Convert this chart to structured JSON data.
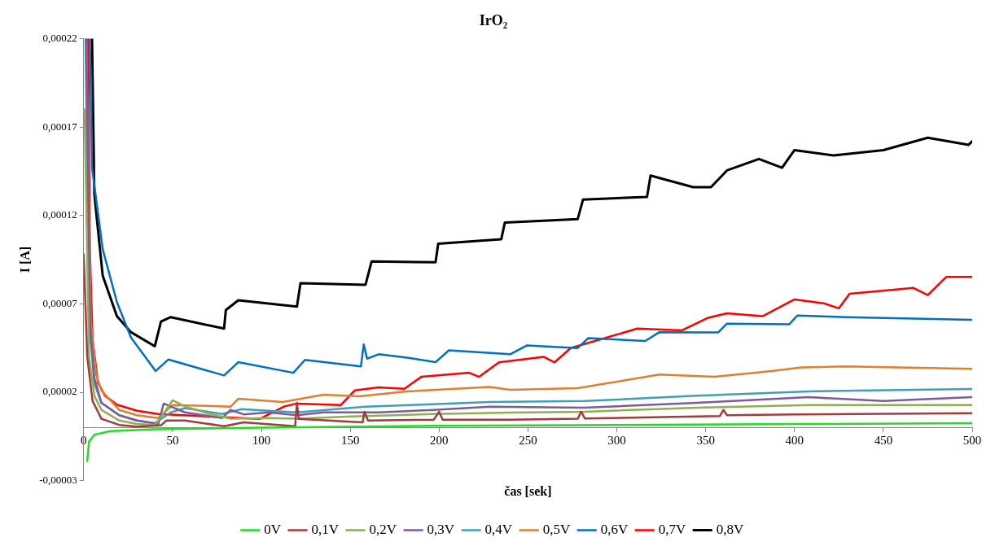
{
  "chart_data": {
    "type": "line",
    "title": "IrO₂",
    "xlabel": "čas [sek]",
    "ylabel": "I [A]",
    "xlim": [
      0,
      500
    ],
    "xticks": [
      0,
      50,
      100,
      150,
      200,
      250,
      300,
      350,
      400,
      450,
      500
    ],
    "ylim": [
      -3e-05,
      0.00022
    ],
    "yticks": [
      {
        "value": -3e-05,
        "label": "-0,00003"
      },
      {
        "value": 2e-05,
        "label": "0,00002"
      },
      {
        "value": 7e-05,
        "label": "0,00007"
      },
      {
        "value": 0.00012,
        "label": "0,00012"
      },
      {
        "value": 0.00017,
        "label": "0,00017"
      },
      {
        "value": 0.00022,
        "label": "0,00022"
      }
    ],
    "grid": false,
    "legend": "bottom",
    "marker": "none",
    "line_style": "solid",
    "series": [
      {
        "name": "0V",
        "color": "#22dd22",
        "x": [
          2,
          3,
          6,
          15,
          40,
          100,
          200,
          300,
          400,
          500
        ],
        "values": [
          -1.9e-05,
          -8e-06,
          -4e-06,
          -2e-06,
          -1e-06,
          0,
          1e-06,
          1.5e-06,
          2e-06,
          2.5e-06
        ]
      },
      {
        "name": "0,1V",
        "color": "#a33b3b",
        "x": [
          0,
          2,
          5,
          10,
          20,
          30,
          43.5,
          46.6,
          57,
          79,
          90,
          119,
          120,
          121,
          157,
          158,
          160,
          197,
          200,
          202,
          240,
          278,
          280,
          282,
          320,
          358,
          360,
          362,
          400,
          450,
          500
        ],
        "values": [
          9.8e-05,
          4e-05,
          1.5e-05,
          5e-06,
          1.5e-06,
          5e-07,
          1.3e-06,
          4e-06,
          4e-06,
          8e-07,
          3e-06,
          8e-07,
          1.4e-05,
          4.9e-06,
          3e-06,
          9e-06,
          4e-06,
          4.5e-06,
          9e-06,
          4.5e-06,
          4.5e-06,
          5e-06,
          9e-06,
          5.2e-06,
          5.8e-06,
          6.5e-06,
          1e-05,
          7e-06,
          7.5e-06,
          7.8e-06,
          8.2e-06
        ]
      },
      {
        "name": "0,2V",
        "color": "#8db050",
        "x": [
          0.5,
          3,
          6,
          10,
          20,
          30,
          40,
          45,
          50,
          57,
          70,
          82.6,
          104,
          120,
          150.6,
          197,
          240,
          282,
          345,
          408,
          500
        ],
        "values": [
          0.00018,
          4e-05,
          1.8e-05,
          1e-05,
          4e-06,
          2e-06,
          1.5e-06,
          8e-06,
          1.54e-05,
          1.2e-05,
          8e-06,
          5e-06,
          5.4e-06,
          5e-06,
          6.3e-06,
          7.7e-06,
          8.5e-06,
          9e-06,
          1.13e-05,
          1.27e-05,
          1.27e-05
        ]
      },
      {
        "name": "0,3V",
        "color": "#7d5aa0",
        "x": [
          1.5,
          3.5,
          6,
          10,
          20,
          30,
          42,
          45,
          57,
          78,
          82.6,
          90,
          104,
          120,
          135,
          166,
          197,
          228.5,
          282,
          345,
          408,
          450,
          500
        ],
        "values": [
          0.00022,
          6e-05,
          2.8e-05,
          1.4e-05,
          7e-06,
          4e-06,
          2e-06,
          1.36e-05,
          8.6e-06,
          5.4e-06,
          1e-05,
          7.5e-06,
          8.6e-06,
          7e-06,
          8.6e-06,
          8.6e-06,
          1e-05,
          1.18e-05,
          1.13e-05,
          1.4e-05,
          1.72e-05,
          1.5e-05,
          1.72e-05
        ]
      },
      {
        "name": "0,4V",
        "color": "#3fa0b5",
        "x": [
          1,
          3,
          6,
          10,
          20,
          30,
          40,
          49,
          57,
          78,
          88.6,
          104,
          120,
          158.6,
          190,
          228.5,
          282,
          345,
          408,
          500
        ],
        "values": [
          0.00022,
          6e-05,
          2.5e-05,
          1.4e-05,
          7e-06,
          4e-06,
          2.5e-06,
          8.6e-06,
          1.1e-05,
          7.7e-06,
          1.04e-05,
          9.5e-06,
          8.6e-06,
          1.18e-05,
          1.3e-05,
          1.45e-05,
          1.5e-05,
          1.8e-05,
          2.05e-05,
          2.18e-05
        ]
      },
      {
        "name": "0,5V",
        "color": "#e07f2f",
        "x": [
          1.5,
          4,
          7,
          10,
          20,
          30,
          42,
          50,
          73,
          82.6,
          87,
          112,
          135,
          155,
          182,
          228.5,
          240,
          278,
          324,
          355,
          387,
          404,
          429,
          500
        ],
        "values": [
          0.00022,
          6e-05,
          3e-05,
          2.1e-05,
          1e-05,
          7e-06,
          5.4e-06,
          1.27e-05,
          1.22e-05,
          1.18e-05,
          1.63e-05,
          1.45e-05,
          1.86e-05,
          1.77e-05,
          2.05e-05,
          2.3e-05,
          2.14e-05,
          2.23e-05,
          3e-05,
          2.87e-05,
          3.2e-05,
          3.4e-05,
          3.46e-05,
          3.32e-05
        ]
      },
      {
        "name": "0,6V",
        "color": "#0070c0",
        "x": [
          3.5,
          4.7,
          10.7,
          18.7,
          26.6,
          40.5,
          47.6,
          79,
          87,
          118,
          124.5,
          156,
          157.6,
          159.5,
          166,
          182,
          198,
          205.5,
          240,
          249.5,
          278,
          284,
          316,
          324,
          357,
          362,
          397,
          401.6,
          429,
          500
        ],
        "values": [
          0.00022,
          0.000147,
          0.000101,
          7.1e-05,
          5.1e-05,
          3.2e-05,
          3.85e-05,
          2.95e-05,
          3.7e-05,
          3.1e-05,
          3.83e-05,
          3.46e-05,
          4.7e-05,
          3.9e-05,
          4.15e-05,
          3.96e-05,
          3.7e-05,
          4.37e-05,
          4.15e-05,
          4.65e-05,
          4.5e-05,
          5.06e-05,
          4.9e-05,
          5.4e-05,
          5.38e-05,
          5.88e-05,
          5.84e-05,
          6.34e-05,
          6.25e-05,
          6.1e-05
        ]
      },
      {
        "name": "0,7V",
        "color": "#ff0000",
        "x": [
          2.5,
          3.5,
          5,
          8,
          12,
          18.7,
          30,
          42,
          99,
          113,
          120,
          144.6,
          152.5,
          166,
          180.5,
          190,
          217,
          222.5,
          233.7,
          259,
          265,
          274,
          311.6,
          336.7,
          351,
          362,
          382,
          400,
          416.5,
          425,
          431,
          456,
          467,
          475,
          485.5,
          500
        ],
        "values": [
          0.00022,
          0.0001,
          5e-05,
          2.55e-05,
          1.8e-05,
          1.3e-05,
          9.5e-06,
          7.7e-06,
          4.9e-06,
          1.2e-05,
          1.36e-05,
          1.27e-05,
          2.1e-05,
          2.28e-05,
          2.2e-05,
          2.87e-05,
          3.1e-05,
          2.87e-05,
          3.69e-05,
          4e-05,
          3.69e-05,
          4.5e-05,
          5.6e-05,
          5.5e-05,
          6.2e-05,
          6.47e-05,
          6.3e-05,
          7.25e-05,
          7.03e-05,
          6.75e-05,
          7.57e-05,
          7.8e-05,
          7.9e-05,
          7.5e-05,
          8.53e-05,
          8.53e-05
        ]
      },
      {
        "name": "0,8V",
        "color": "#000000",
        "x": [
          4.7,
          6,
          10.7,
          18.7,
          26.6,
          40,
          43.5,
          49,
          79,
          80,
          87,
          120,
          122,
          158.6,
          162,
          198,
          199.5,
          235,
          237,
          278,
          281,
          317,
          319,
          343,
          353,
          362,
          380,
          393,
          400,
          422,
          450,
          475,
          498,
          500
        ],
        "values": [
          0.00022,
          0.000132,
          8.6e-05,
          6.3e-05,
          5.4e-05,
          4.6e-05,
          6e-05,
          6.25e-05,
          5.6e-05,
          6.65e-05,
          7.2e-05,
          6.85e-05,
          8.17e-05,
          8.08e-05,
          9.4e-05,
          9.35e-05,
          0.000104,
          0.0001066,
          0.000116,
          0.000118,
          0.000129,
          0.0001305,
          0.0001426,
          0.000136,
          0.000136,
          0.0001455,
          0.000152,
          0.000147,
          0.000157,
          0.000154,
          0.000157,
          0.000164,
          0.00016,
          0.000162
        ]
      }
    ]
  }
}
